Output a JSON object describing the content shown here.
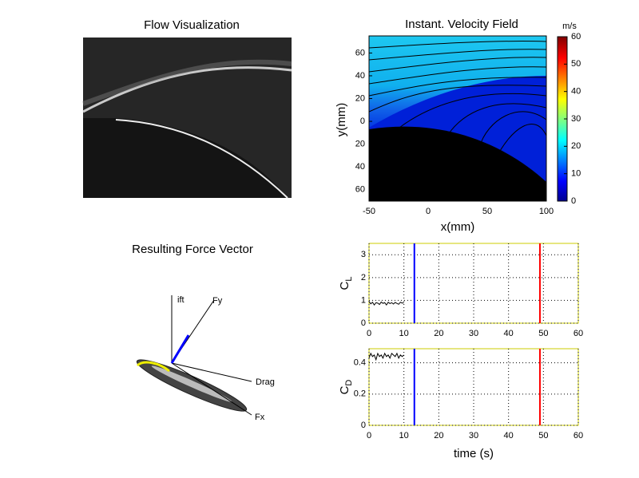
{
  "chart_data": [
    {
      "type": "image",
      "title": "Flow Visualization"
    },
    {
      "type": "field",
      "title": "Instant. Velocity Field",
      "xlabel": "x(mm)",
      "ylabel": "y(mm)",
      "xlim": [
        -50,
        100
      ],
      "xticks": [
        -50,
        0,
        50,
        100
      ],
      "ylim": [
        -70,
        75
      ],
      "yticks": [
        {
          "value": -60,
          "label": "60"
        },
        {
          "value": -40,
          "label": "40"
        },
        {
          "value": -20,
          "label": "20"
        },
        0,
        20,
        40,
        60
      ],
      "colorbar_label": "m/s",
      "clim": [
        0,
        60
      ],
      "cticks": [
        0,
        10,
        20,
        30,
        40,
        50,
        60
      ]
    },
    {
      "type": "vectors",
      "title": "Resulting Force Vector",
      "labels": [
        "ift",
        "Fy",
        "Drag",
        "Fx"
      ]
    },
    {
      "type": "line",
      "ylabel": "C",
      "ylabel_sub": "L",
      "xlim": [
        0,
        60
      ],
      "xticks": [
        0,
        10,
        20,
        30,
        40,
        50,
        60
      ],
      "ylim": [
        0,
        3.5
      ],
      "yticks": [
        0,
        1,
        2,
        3
      ],
      "grid": true,
      "x": [
        0,
        0.5,
        1,
        1.5,
        2,
        2.5,
        3,
        3.5,
        4,
        4.5,
        5,
        5.5,
        6,
        6.5,
        7,
        7.5,
        8,
        8.5,
        9,
        9.5,
        10
      ],
      "series": [
        {
          "color": "#000000",
          "values": [
            0.95,
            0.85,
            0.92,
            0.8,
            0.9,
            0.88,
            0.82,
            0.93,
            0.87,
            0.9,
            0.8,
            0.92,
            0.86,
            0.9,
            0.84,
            0.91,
            0.87,
            0.83,
            0.92,
            0.88,
            0.9
          ]
        }
      ],
      "markers": [
        {
          "x": 13,
          "color": "#0000ff"
        },
        {
          "x": 49,
          "color": "#ff0000"
        }
      ]
    },
    {
      "type": "line",
      "ylabel": "C",
      "ylabel_sub": "D",
      "xlabel": "time (s)",
      "xlim": [
        0,
        60
      ],
      "xticks": [
        0,
        10,
        20,
        30,
        40,
        50,
        60
      ],
      "ylim": [
        0,
        0.49
      ],
      "yticks": [
        0,
        0.2,
        0.4
      ],
      "grid": true,
      "x": [
        0,
        0.5,
        1,
        1.5,
        2,
        2.5,
        3,
        3.5,
        4,
        4.5,
        5,
        5.5,
        6,
        6.5,
        7,
        7.5,
        8,
        8.5,
        9,
        9.5,
        10
      ],
      "series": [
        {
          "color": "#000000",
          "values": [
            0.43,
            0.46,
            0.44,
            0.45,
            0.42,
            0.46,
            0.44,
            0.45,
            0.43,
            0.46,
            0.44,
            0.45,
            0.43,
            0.46,
            0.45,
            0.44,
            0.46,
            0.43,
            0.45,
            0.44,
            0.45
          ]
        }
      ],
      "markers": [
        {
          "x": 13,
          "color": "#0000ff"
        },
        {
          "x": 49,
          "color": "#ff0000"
        }
      ]
    }
  ]
}
